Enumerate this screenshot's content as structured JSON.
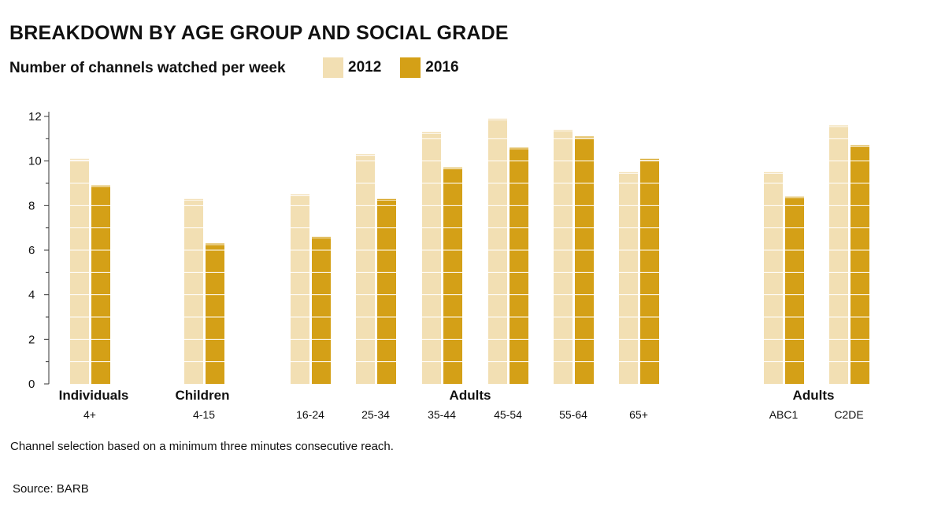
{
  "header": {
    "title": "BREAKDOWN BY AGE GROUP AND SOCIAL GRADE",
    "subtitle": "Number of channels watched per week"
  },
  "legend": [
    {
      "label": "2012",
      "color": "#f2dfb3"
    },
    {
      "label": "2016",
      "color": "#d4a017"
    }
  ],
  "footnote": "Channel selection based on a minimum three minutes consecutive reach.",
  "source": "Source: BARB",
  "chart_data": {
    "type": "bar",
    "title": "BREAKDOWN BY AGE GROUP AND SOCIAL GRADE",
    "xlabel": "",
    "ylabel": "",
    "ylim": [
      0,
      12
    ],
    "yticks": [
      0,
      2,
      4,
      6,
      8,
      10,
      12
    ],
    "grid": false,
    "legend_position": "top",
    "categories": [
      "4+",
      "4-15",
      "16-24",
      "25-34",
      "35-44",
      "45-54",
      "55-64",
      "65+",
      "ABC1",
      "C2DE"
    ],
    "group_labels": [
      "Individuals",
      "Children",
      "Adults",
      "Adults"
    ],
    "series": [
      {
        "name": "2012",
        "color": "#f2dfb3",
        "values": [
          10.1,
          8.3,
          8.5,
          10.3,
          11.3,
          11.9,
          11.4,
          9.5,
          9.5,
          11.6
        ]
      },
      {
        "name": "2016",
        "color": "#d4a017",
        "values": [
          8.9,
          6.3,
          6.6,
          8.3,
          9.7,
          10.6,
          11.1,
          10.1,
          8.4,
          10.7
        ]
      }
    ]
  }
}
